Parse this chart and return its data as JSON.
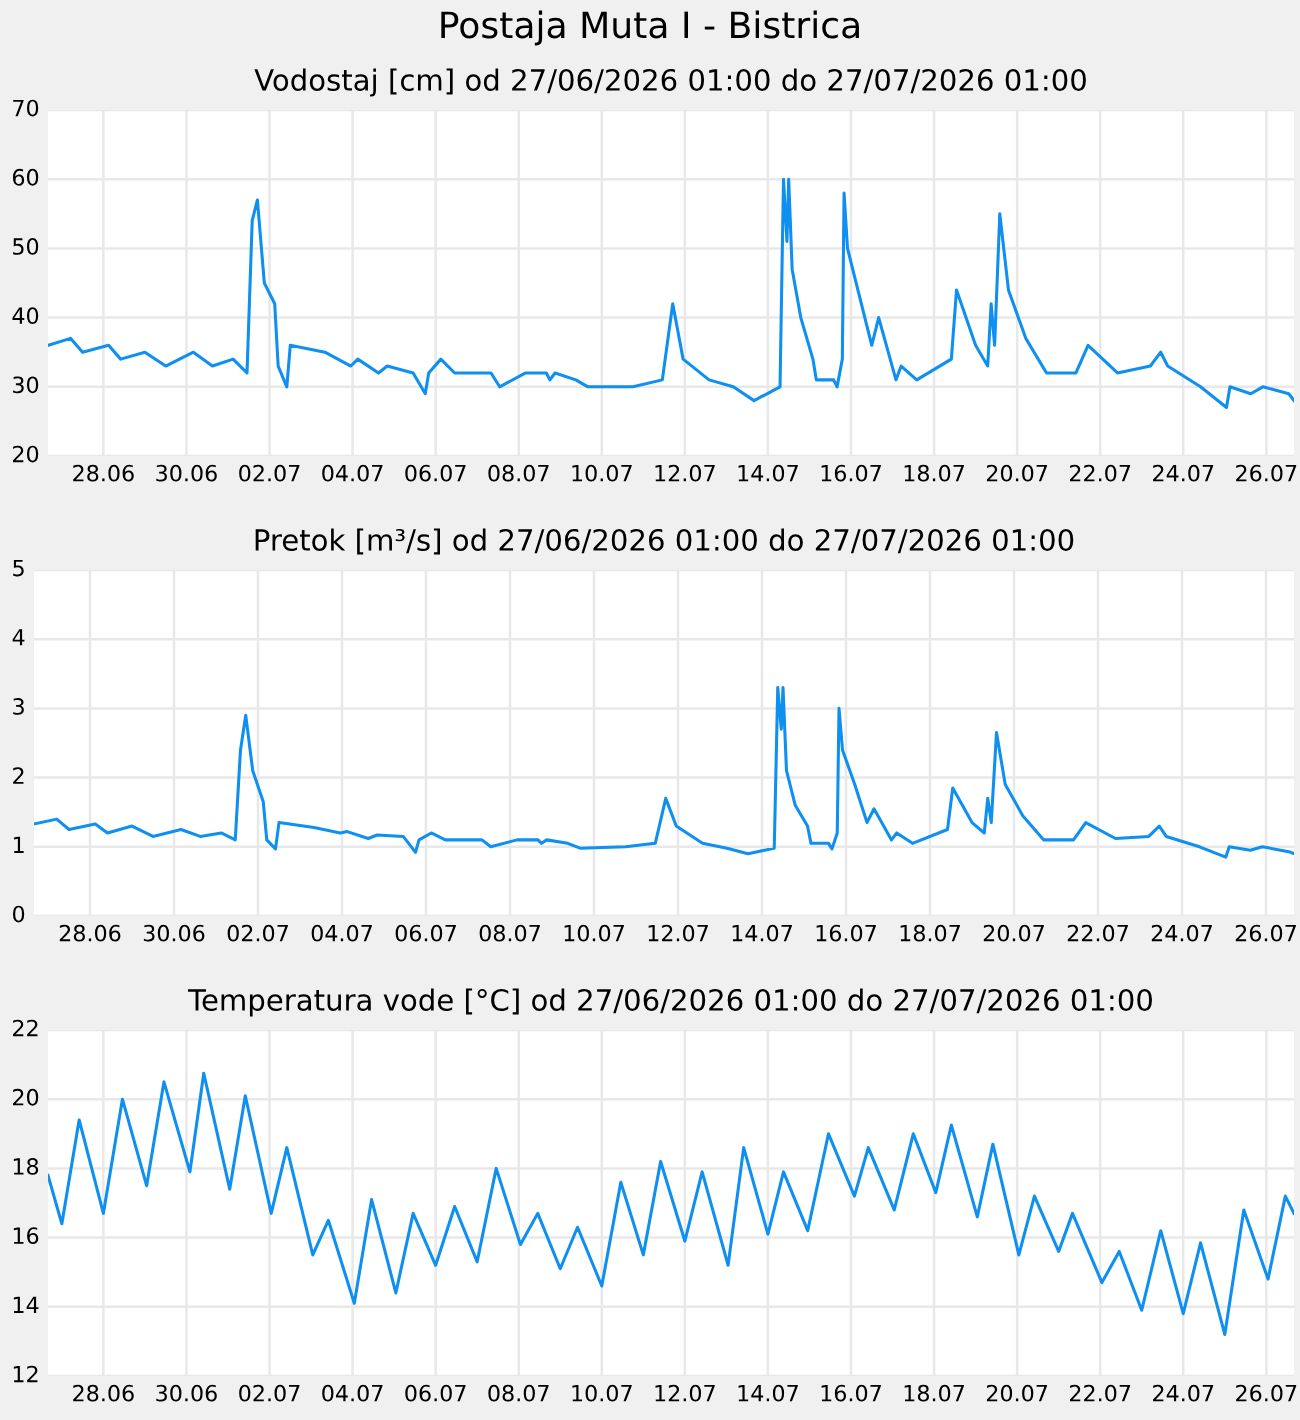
{
  "chart_data": [
    {
      "type": "line",
      "title": "Postaja Muta I - Bistrica",
      "subtitle": "Vodostaj [cm] od 27/06/2026 01:00 do 27/07/2026 01:00",
      "series": [
        {
          "color": "#0f8fef",
          "x": [
            "2026-06-27T01:00",
            "2026-06-27T14:00",
            "2026-06-27T21:00",
            "2026-06-28T12:00",
            "2026-06-28T19:00",
            "2026-06-29T09:00",
            "2026-06-29T21:00",
            "2026-06-30T13:00",
            "2026-07-01T00:00",
            "2026-07-01T12:00",
            "2026-07-01T20:00",
            "2026-07-01T23:00",
            "2026-07-02T02:00",
            "2026-07-02T06:00",
            "2026-07-02T12:00",
            "2026-07-02T14:00",
            "2026-07-02T19:00",
            "2026-07-02T21:00",
            "2026-07-03T17:00",
            "2026-07-04T08:00",
            "2026-07-04T12:00",
            "2026-07-05T00:00",
            "2026-07-05T05:00",
            "2026-07-05T20:00",
            "2026-07-06T03:00",
            "2026-07-06T05:00",
            "2026-07-06T12:00",
            "2026-07-06T20:00",
            "2026-07-07T17:00",
            "2026-07-07T22:00",
            "2026-07-08T13:00",
            "2026-07-09T01:00",
            "2026-07-09T03:00",
            "2026-07-09T06:00",
            "2026-07-09T18:00",
            "2026-07-10T01:00",
            "2026-07-11T03:00",
            "2026-07-11T20:00",
            "2026-07-12T02:00",
            "2026-07-12T08:00",
            "2026-07-12T23:00",
            "2026-07-13T13:00",
            "2026-07-14T01:00",
            "2026-07-14T16:00",
            "2026-07-14T18:00",
            "2026-07-14T20:00",
            "2026-07-14T21:00",
            "2026-07-14T23:00",
            "2026-07-15T04:00",
            "2026-07-15T11:00",
            "2026-07-15T13:00",
            "2026-07-15T23:00",
            "2026-07-16T01:00",
            "2026-07-16T04:00",
            "2026-07-16T05:00",
            "2026-07-16T07:00",
            "2026-07-16T14:00",
            "2026-07-16T21:00",
            "2026-07-17T01:00",
            "2026-07-17T11:00",
            "2026-07-17T14:00",
            "2026-07-17T23:00",
            "2026-07-18T19:00",
            "2026-07-18T22:00",
            "2026-07-19T09:00",
            "2026-07-19T16:00",
            "2026-07-19T18:00",
            "2026-07-19T20:00",
            "2026-07-19T23:00",
            "2026-07-20T04:00",
            "2026-07-20T14:00",
            "2026-07-21T02:00",
            "2026-07-21T19:00",
            "2026-07-22T02:00",
            "2026-07-22T19:00",
            "2026-07-23T14:00",
            "2026-07-23T20:00",
            "2026-07-24T00:00",
            "2026-07-24T19:00",
            "2026-07-25T10:00",
            "2026-07-25T12:00",
            "2026-07-26T00:00",
            "2026-07-26T07:00",
            "2026-07-26T22:00",
            "2026-07-27T01:00"
          ],
          "values": [
            36,
            37,
            35,
            36,
            34,
            35,
            33,
            35,
            33,
            34,
            32,
            54,
            57,
            45,
            42,
            33,
            30,
            36,
            35,
            33,
            34,
            32,
            33,
            32,
            29,
            32,
            34,
            32,
            32,
            30,
            32,
            32,
            31,
            32,
            31,
            30,
            30,
            31,
            42,
            34,
            31,
            30,
            28,
            30,
            60,
            51,
            60,
            47,
            40,
            34,
            31,
            31,
            30,
            34,
            58,
            50,
            43,
            36,
            40,
            31,
            33,
            31,
            34,
            44,
            36,
            33,
            42,
            36,
            55,
            44,
            37,
            32,
            32,
            36,
            32,
            33,
            35,
            33,
            30,
            27,
            30,
            29,
            30,
            29,
            28
          ]
        }
      ],
      "xlim": [
        "2026-06-27T01:00",
        "2026-07-27T01:00"
      ],
      "xticks": [
        {
          "value": "2026-06-28T09:00",
          "label": "28.06"
        },
        {
          "value": "2026-06-30T09:00",
          "label": "30.06"
        },
        {
          "value": "2026-07-02T09:00",
          "label": "02.07"
        },
        {
          "value": "2026-07-04T09:00",
          "label": "04.07"
        },
        {
          "value": "2026-07-06T09:00",
          "label": "06.07"
        },
        {
          "value": "2026-07-08T09:00",
          "label": "08.07"
        },
        {
          "value": "2026-07-10T09:00",
          "label": "10.07"
        },
        {
          "value": "2026-07-12T09:00",
          "label": "12.07"
        },
        {
          "value": "2026-07-14T09:00",
          "label": "14.07"
        },
        {
          "value": "2026-07-16T09:00",
          "label": "16.07"
        },
        {
          "value": "2026-07-18T09:00",
          "label": "18.07"
        },
        {
          "value": "2026-07-20T09:00",
          "label": "20.07"
        },
        {
          "value": "2026-07-22T09:00",
          "label": "22.07"
        },
        {
          "value": "2026-07-24T09:00",
          "label": "24.07"
        },
        {
          "value": "2026-07-26T09:00",
          "label": "26.07"
        }
      ],
      "ylim": [
        20,
        70
      ],
      "yticks": [
        20,
        30,
        40,
        50,
        60,
        70
      ],
      "grid": true
    },
    {
      "type": "line",
      "title": "Pretok [m³/s] od 27/06/2026 01:00 do 27/07/2026 01:00",
      "series": [
        {
          "color": "#0f8fef",
          "x": [
            "2026-06-27T01:00",
            "2026-06-27T14:00",
            "2026-06-27T21:00",
            "2026-06-28T12:00",
            "2026-06-28T19:00",
            "2026-06-29T09:00",
            "2026-06-29T21:00",
            "2026-06-30T13:00",
            "2026-07-01T00:00",
            "2026-07-01T12:00",
            "2026-07-01T20:00",
            "2026-07-01T23:00",
            "2026-07-02T02:00",
            "2026-07-02T06:00",
            "2026-07-02T12:00",
            "2026-07-02T14:00",
            "2026-07-02T19:00",
            "2026-07-02T21:00",
            "2026-07-03T17:00",
            "2026-07-04T08:00",
            "2026-07-04T12:00",
            "2026-07-05T00:00",
            "2026-07-05T05:00",
            "2026-07-05T20:00",
            "2026-07-06T03:00",
            "2026-07-06T05:00",
            "2026-07-06T12:00",
            "2026-07-06T20:00",
            "2026-07-07T17:00",
            "2026-07-07T22:00",
            "2026-07-08T13:00",
            "2026-07-09T01:00",
            "2026-07-09T03:00",
            "2026-07-09T06:00",
            "2026-07-09T18:00",
            "2026-07-10T01:00",
            "2026-07-11T03:00",
            "2026-07-11T20:00",
            "2026-07-12T02:00",
            "2026-07-12T08:00",
            "2026-07-12T23:00",
            "2026-07-13T13:00",
            "2026-07-14T01:00",
            "2026-07-14T16:00",
            "2026-07-14T18:00",
            "2026-07-14T20:00",
            "2026-07-14T21:00",
            "2026-07-14T23:00",
            "2026-07-15T04:00",
            "2026-07-15T11:00",
            "2026-07-15T13:00",
            "2026-07-15T23:00",
            "2026-07-16T01:00",
            "2026-07-16T04:00",
            "2026-07-16T05:00",
            "2026-07-16T07:00",
            "2026-07-16T14:00",
            "2026-07-16T21:00",
            "2026-07-17T01:00",
            "2026-07-17T11:00",
            "2026-07-17T14:00",
            "2026-07-17T23:00",
            "2026-07-18T19:00",
            "2026-07-18T22:00",
            "2026-07-19T09:00",
            "2026-07-19T16:00",
            "2026-07-19T18:00",
            "2026-07-19T20:00",
            "2026-07-19T23:00",
            "2026-07-20T04:00",
            "2026-07-20T14:00",
            "2026-07-21T02:00",
            "2026-07-21T19:00",
            "2026-07-22T02:00",
            "2026-07-22T19:00",
            "2026-07-23T14:00",
            "2026-07-23T20:00",
            "2026-07-24T00:00",
            "2026-07-24T19:00",
            "2026-07-25T10:00",
            "2026-07-25T12:00",
            "2026-07-26T00:00",
            "2026-07-26T07:00",
            "2026-07-26T22:00",
            "2026-07-27T01:00"
          ],
          "values": [
            1.33,
            1.4,
            1.25,
            1.33,
            1.2,
            1.3,
            1.15,
            1.25,
            1.15,
            1.2,
            1.1,
            2.4,
            2.9,
            2.1,
            1.65,
            1.1,
            0.97,
            1.35,
            1.28,
            1.2,
            1.22,
            1.12,
            1.17,
            1.15,
            0.92,
            1.1,
            1.2,
            1.1,
            1.1,
            1.0,
            1.1,
            1.1,
            1.05,
            1.1,
            1.05,
            0.98,
            1.0,
            1.05,
            1.7,
            1.3,
            1.05,
            0.98,
            0.9,
            0.98,
            3.3,
            2.7,
            3.3,
            2.1,
            1.6,
            1.3,
            1.05,
            1.05,
            0.97,
            1.2,
            3.0,
            2.4,
            1.9,
            1.35,
            1.55,
            1.1,
            1.2,
            1.05,
            1.25,
            1.85,
            1.35,
            1.2,
            1.7,
            1.35,
            2.65,
            1.9,
            1.45,
            1.1,
            1.1,
            1.35,
            1.12,
            1.15,
            1.3,
            1.15,
            1.0,
            0.85,
            1.0,
            0.95,
            1.0,
            0.93,
            0.9
          ]
        }
      ],
      "xlim": [
        "2026-06-27T01:00",
        "2026-07-27T01:00"
      ],
      "xticks": [
        {
          "value": "2026-06-28T09:00",
          "label": "28.06"
        },
        {
          "value": "2026-06-30T09:00",
          "label": "30.06"
        },
        {
          "value": "2026-07-02T09:00",
          "label": "02.07"
        },
        {
          "value": "2026-07-04T09:00",
          "label": "04.07"
        },
        {
          "value": "2026-07-06T09:00",
          "label": "06.07"
        },
        {
          "value": "2026-07-08T09:00",
          "label": "08.07"
        },
        {
          "value": "2026-07-10T09:00",
          "label": "10.07"
        },
        {
          "value": "2026-07-12T09:00",
          "label": "12.07"
        },
        {
          "value": "2026-07-14T09:00",
          "label": "14.07"
        },
        {
          "value": "2026-07-16T09:00",
          "label": "16.07"
        },
        {
          "value": "2026-07-18T09:00",
          "label": "18.07"
        },
        {
          "value": "2026-07-20T09:00",
          "label": "20.07"
        },
        {
          "value": "2026-07-22T09:00",
          "label": "22.07"
        },
        {
          "value": "2026-07-24T09:00",
          "label": "24.07"
        },
        {
          "value": "2026-07-26T09:00",
          "label": "26.07"
        }
      ],
      "ylim": [
        0,
        5
      ],
      "yticks": [
        0,
        1,
        2,
        3,
        4,
        5
      ],
      "grid": true
    },
    {
      "type": "line",
      "title": "Temperatura vode [°C] od 27/06/2026 01:00 do 27/07/2026 01:00",
      "series": [
        {
          "color": "#0f8fef",
          "x": [
            "2026-06-27T01:00",
            "2026-06-27T09:00",
            "2026-06-27T19:00",
            "2026-06-28T09:00",
            "2026-06-28T20:00",
            "2026-06-29T10:00",
            "2026-06-29T20:00",
            "2026-06-30T11:00",
            "2026-06-30T19:00",
            "2026-07-01T10:00",
            "2026-07-01T19:00",
            "2026-07-02T10:00",
            "2026-07-02T19:00",
            "2026-07-03T10:00",
            "2026-07-03T19:00",
            "2026-07-04T10:00",
            "2026-07-04T20:00",
            "2026-07-05T10:00",
            "2026-07-05T20:00",
            "2026-07-06T09:00",
            "2026-07-06T20:00",
            "2026-07-07T09:00",
            "2026-07-07T20:00",
            "2026-07-08T10:00",
            "2026-07-08T20:00",
            "2026-07-09T09:00",
            "2026-07-09T19:00",
            "2026-07-10T09:00",
            "2026-07-10T20:00",
            "2026-07-11T09:00",
            "2026-07-11T19:00",
            "2026-07-12T09:00",
            "2026-07-12T19:00",
            "2026-07-13T10:00",
            "2026-07-13T19:00",
            "2026-07-14T09:00",
            "2026-07-14T18:00",
            "2026-07-15T08:00",
            "2026-07-15T20:00",
            "2026-07-16T11:00",
            "2026-07-16T19:00",
            "2026-07-17T10:00",
            "2026-07-17T21:00",
            "2026-07-18T10:00",
            "2026-07-18T19:00",
            "2026-07-19T10:00",
            "2026-07-19T19:00",
            "2026-07-20T10:00",
            "2026-07-20T19:00",
            "2026-07-21T09:00",
            "2026-07-21T17:00",
            "2026-07-22T10:00",
            "2026-07-22T20:00",
            "2026-07-23T09:00",
            "2026-07-23T20:00",
            "2026-07-24T09:00",
            "2026-07-24T19:00",
            "2026-07-25T09:00",
            "2026-07-25T20:00",
            "2026-07-26T10:00",
            "2026-07-26T20:00",
            "2026-07-27T01:00"
          ],
          "values": [
            17.8,
            16.4,
            19.4,
            16.7,
            20.0,
            17.5,
            20.5,
            17.9,
            20.75,
            17.4,
            20.1,
            16.7,
            18.6,
            15.5,
            16.5,
            14.1,
            17.1,
            14.4,
            16.7,
            15.2,
            16.9,
            15.3,
            18.0,
            15.8,
            16.7,
            15.1,
            16.3,
            14.6,
            17.6,
            15.5,
            18.2,
            15.9,
            17.9,
            15.2,
            18.6,
            16.1,
            17.9,
            16.2,
            19.0,
            17.2,
            18.6,
            16.8,
            19.0,
            17.3,
            19.25,
            16.6,
            18.7,
            15.5,
            17.2,
            15.6,
            16.7,
            14.7,
            15.6,
            13.9,
            16.2,
            13.8,
            15.85,
            13.2,
            16.8,
            14.8,
            17.2,
            16.7
          ]
        }
      ],
      "xlim": [
        "2026-06-27T01:00",
        "2026-07-27T01:00"
      ],
      "xticks": [
        {
          "value": "2026-06-28T09:00",
          "label": "28.06"
        },
        {
          "value": "2026-06-30T09:00",
          "label": "30.06"
        },
        {
          "value": "2026-07-02T09:00",
          "label": "02.07"
        },
        {
          "value": "2026-07-04T09:00",
          "label": "04.07"
        },
        {
          "value": "2026-07-06T09:00",
          "label": "06.07"
        },
        {
          "value": "2026-07-08T09:00",
          "label": "08.07"
        },
        {
          "value": "2026-07-10T09:00",
          "label": "10.07"
        },
        {
          "value": "2026-07-12T09:00",
          "label": "12.07"
        },
        {
          "value": "2026-07-14T09:00",
          "label": "14.07"
        },
        {
          "value": "2026-07-16T09:00",
          "label": "16.07"
        },
        {
          "value": "2026-07-18T09:00",
          "label": "18.07"
        },
        {
          "value": "2026-07-20T09:00",
          "label": "20.07"
        },
        {
          "value": "2026-07-22T09:00",
          "label": "22.07"
        },
        {
          "value": "2026-07-24T09:00",
          "label": "24.07"
        },
        {
          "value": "2026-07-26T09:00",
          "label": "26.07"
        }
      ],
      "ylim": [
        12,
        22
      ],
      "yticks": [
        12,
        14,
        16,
        18,
        20,
        22
      ],
      "grid": true
    }
  ]
}
